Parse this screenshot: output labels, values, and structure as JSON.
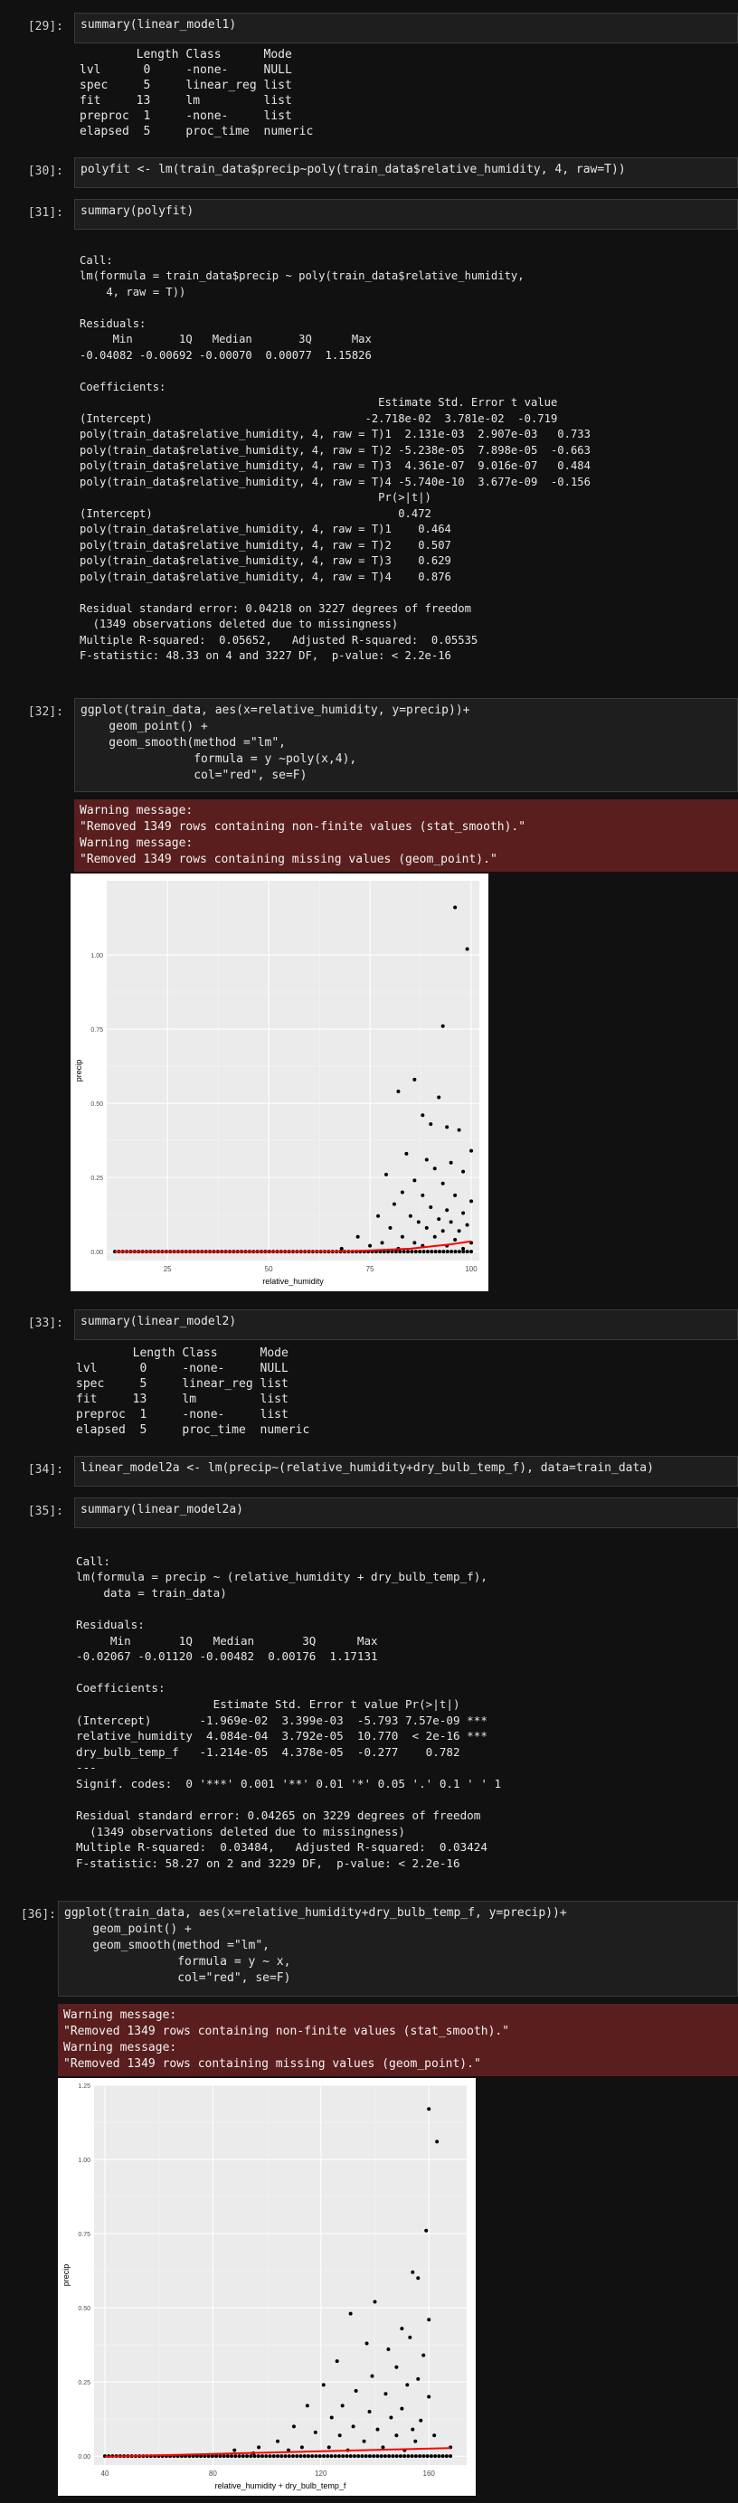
{
  "cells": [
    {
      "prompt": "[29]:",
      "code": "summary(linear_model1)"
    },
    {
      "prompt": "[30]:",
      "code": "polyfit <- lm(train_data$precip~poly(train_data$relative_humidity, 4, raw=T))"
    },
    {
      "prompt": "[31]:",
      "code": "summary(polyfit)"
    },
    {
      "prompt": "[32]:",
      "code": "ggplot(train_data, aes(x=relative_humidity, y=precip))+\n    geom_point() +\n    geom_smooth(method =\"lm\",\n                formula = y ~poly(x,4),\n                col=\"red\", se=F)"
    },
    {
      "prompt": "[33]:",
      "code": "summary(linear_model2)"
    },
    {
      "prompt": "[34]:",
      "code": "linear_model2a <- lm(precip~(relative_humidity+dry_bulb_temp_f), data=train_data)"
    },
    {
      "prompt": "[35]:",
      "code": "summary(linear_model2a)"
    },
    {
      "prompt": "[36]:",
      "code": "ggplot(train_data, aes(x=relative_humidity+dry_bulb_temp_f, y=precip))+\n    geom_point() +\n    geom_smooth(method =\"lm\",\n                formula = y ~ x,\n                col=\"red\", se=F)"
    }
  ],
  "outputs": {
    "out29": "        Length Class      Mode   \nlvl      0     -none-     NULL   \nspec     5     linear_reg list   \nfit     13     lm         list   \npreproc  1     -none-     list   \nelapsed  5     proc_time  numeric",
    "out31": "\nCall:\nlm(formula = train_data$precip ~ poly(train_data$relative_humidity, \n    4, raw = T))\n\nResiduals:\n     Min       1Q   Median       3Q      Max \n-0.04082 -0.00692 -0.00070  0.00077  1.15826 \n\nCoefficients:\n                                             Estimate Std. Error t value\n(Intercept)                                -2.718e-02  3.781e-02  -0.719\npoly(train_data$relative_humidity, 4, raw = T)1  2.131e-03  2.907e-03   0.733\npoly(train_data$relative_humidity, 4, raw = T)2 -5.238e-05  7.898e-05  -0.663\npoly(train_data$relative_humidity, 4, raw = T)3  4.361e-07  9.016e-07   0.484\npoly(train_data$relative_humidity, 4, raw = T)4 -5.740e-10  3.677e-09  -0.156\n                                             Pr(>|t|)\n(Intercept)                                     0.472\npoly(train_data$relative_humidity, 4, raw = T)1    0.464\npoly(train_data$relative_humidity, 4, raw = T)2    0.507\npoly(train_data$relative_humidity, 4, raw = T)3    0.629\npoly(train_data$relative_humidity, 4, raw = T)4    0.876\n\nResidual standard error: 0.04218 on 3227 degrees of freedom\n  (1349 observations deleted due to missingness)\nMultiple R-squared:  0.05652,\tAdjusted R-squared:  0.05535 \nF-statistic: 48.33 on 4 and 3227 DF,  p-value: < 2.2e-16",
    "warn32": "Warning message:\n\"Removed 1349 rows containing non-finite values (stat_smooth).\"\nWarning message:\n\"Removed 1349 rows containing missing values (geom_point).\"",
    "out33": "        Length Class      Mode   \nlvl      0     -none-     NULL   \nspec     5     linear_reg list   \nfit     13     lm         list   \npreproc  1     -none-     list   \nelapsed  5     proc_time  numeric",
    "out35": "\nCall:\nlm(formula = precip ~ (relative_humidity + dry_bulb_temp_f), \n    data = train_data)\n\nResiduals:\n     Min       1Q   Median       3Q      Max \n-0.02067 -0.01120 -0.00482  0.00176  1.17131 \n\nCoefficients:\n                    Estimate Std. Error t value Pr(>|t|)    \n(Intercept)       -1.969e-02  3.399e-03  -5.793 7.57e-09 ***\nrelative_humidity  4.084e-04  3.792e-05  10.770  < 2e-16 ***\ndry_bulb_temp_f   -1.214e-05  4.378e-05  -0.277    0.782    \n---\nSignif. codes:  0 '***' 0.001 '**' 0.01 '*' 0.05 '.' 0.1 ' ' 1\n\nResidual standard error: 0.04265 on 3229 degrees of freedom\n  (1349 observations deleted due to missingness)\nMultiple R-squared:  0.03484,\tAdjusted R-squared:  0.03424 \nF-statistic: 58.27 on 2 and 3229 DF,  p-value: < 2.2e-16",
    "warn36": "Warning message:\n\"Removed 1349 rows containing non-finite values (stat_smooth).\"\nWarning message:\n\"Removed 1349 rows containing missing values (geom_point).\""
  },
  "chart_data": [
    {
      "type": "scatter",
      "xlabel": "relative_humidity",
      "ylabel": "precip",
      "xlim": [
        10,
        102
      ],
      "ylim": [
        -0.03,
        1.25
      ],
      "xticks": [
        "25",
        "50",
        "75",
        "100"
      ],
      "xtick_values": [
        25,
        50,
        75,
        100
      ],
      "yticks": [
        "0.00",
        "0.25",
        "0.50",
        "0.75",
        "1.00"
      ],
      "ytick_values": [
        0,
        0.25,
        0.5,
        0.75,
        1.0
      ],
      "grid": true,
      "fit_color": "#ff0000",
      "points": [
        [
          96,
          1.16
        ],
        [
          99,
          1.02
        ],
        [
          93,
          0.76
        ],
        [
          86,
          0.58
        ],
        [
          82,
          0.54
        ],
        [
          92,
          0.52
        ],
        [
          88,
          0.46
        ],
        [
          90,
          0.43
        ],
        [
          94,
          0.42
        ],
        [
          97,
          0.41
        ],
        [
          100,
          0.34
        ],
        [
          84,
          0.33
        ],
        [
          89,
          0.31
        ],
        [
          95,
          0.3
        ],
        [
          91,
          0.28
        ],
        [
          98,
          0.27
        ],
        [
          79,
          0.26
        ],
        [
          86,
          0.24
        ],
        [
          93,
          0.23
        ],
        [
          83,
          0.2
        ],
        [
          88,
          0.19
        ],
        [
          96,
          0.19
        ],
        [
          100,
          0.17
        ],
        [
          81,
          0.16
        ],
        [
          90,
          0.15
        ],
        [
          94,
          0.14
        ],
        [
          98,
          0.13
        ],
        [
          77,
          0.12
        ],
        [
          85,
          0.12
        ],
        [
          92,
          0.11
        ],
        [
          87,
          0.1
        ],
        [
          95,
          0.1
        ],
        [
          99,
          0.09
        ],
        [
          80,
          0.08
        ],
        [
          89,
          0.08
        ],
        [
          93,
          0.07
        ],
        [
          97,
          0.07
        ],
        [
          72,
          0.05
        ],
        [
          83,
          0.05
        ],
        [
          91,
          0.05
        ],
        [
          96,
          0.04
        ],
        [
          78,
          0.03
        ],
        [
          86,
          0.03
        ],
        [
          100,
          0.03
        ],
        [
          75,
          0.02
        ],
        [
          88,
          0.02
        ],
        [
          94,
          0.02
        ],
        [
          68,
          0.01
        ],
        [
          82,
          0.01
        ],
        [
          98,
          0.01
        ]
      ],
      "baseline_x_range": [
        12,
        100
      ],
      "fit_curve": [
        [
          12,
          0.0
        ],
        [
          30,
          0.0
        ],
        [
          50,
          0.0
        ],
        [
          70,
          0.001
        ],
        [
          85,
          0.01
        ],
        [
          95,
          0.025
        ],
        [
          100,
          0.035
        ]
      ]
    },
    {
      "type": "scatter",
      "xlabel": "relative_humidity + dry_bulb_temp_f",
      "ylabel": "precip",
      "xlim": [
        36,
        174
      ],
      "ylim": [
        -0.03,
        1.25
      ],
      "xticks": [
        "40",
        "80",
        "120",
        "160"
      ],
      "xtick_values": [
        40,
        80,
        120,
        160
      ],
      "yticks": [
        "0.00",
        "0.25",
        "0.50",
        "0.75",
        "1.00",
        "1.25"
      ],
      "ytick_values": [
        0,
        0.25,
        0.5,
        0.75,
        1.0,
        1.25
      ],
      "grid": true,
      "fit_color": "#ff0000",
      "points": [
        [
          160,
          1.17
        ],
        [
          163,
          1.06
        ],
        [
          159,
          0.76
        ],
        [
          154,
          0.62
        ],
        [
          156,
          0.6
        ],
        [
          140,
          0.52
        ],
        [
          131,
          0.48
        ],
        [
          160,
          0.46
        ],
        [
          150,
          0.43
        ],
        [
          153,
          0.4
        ],
        [
          137,
          0.38
        ],
        [
          145,
          0.36
        ],
        [
          158,
          0.34
        ],
        [
          126,
          0.32
        ],
        [
          148,
          0.3
        ],
        [
          139,
          0.27
        ],
        [
          156,
          0.26
        ],
        [
          121,
          0.24
        ],
        [
          152,
          0.24
        ],
        [
          133,
          0.22
        ],
        [
          144,
          0.21
        ],
        [
          160,
          0.2
        ],
        [
          115,
          0.17
        ],
        [
          128,
          0.17
        ],
        [
          150,
          0.16
        ],
        [
          138,
          0.15
        ],
        [
          124,
          0.13
        ],
        [
          146,
          0.13
        ],
        [
          157,
          0.12
        ],
        [
          110,
          0.1
        ],
        [
          132,
          0.1
        ],
        [
          141,
          0.09
        ],
        [
          154,
          0.09
        ],
        [
          118,
          0.08
        ],
        [
          127,
          0.07
        ],
        [
          148,
          0.07
        ],
        [
          162,
          0.07
        ],
        [
          104,
          0.05
        ],
        [
          136,
          0.05
        ],
        [
          155,
          0.05
        ],
        [
          97,
          0.03
        ],
        [
          113,
          0.03
        ],
        [
          123,
          0.03
        ],
        [
          143,
          0.03
        ],
        [
          168,
          0.03
        ],
        [
          88,
          0.02
        ],
        [
          108,
          0.02
        ],
        [
          130,
          0.02
        ],
        [
          151,
          0.02
        ],
        [
          95,
          0.01
        ]
      ],
      "baseline_x_range": [
        40,
        168
      ],
      "fit_curve": [
        [
          40,
          -0.002
        ],
        [
          100,
          0.012
        ],
        [
          168,
          0.027
        ]
      ]
    }
  ]
}
